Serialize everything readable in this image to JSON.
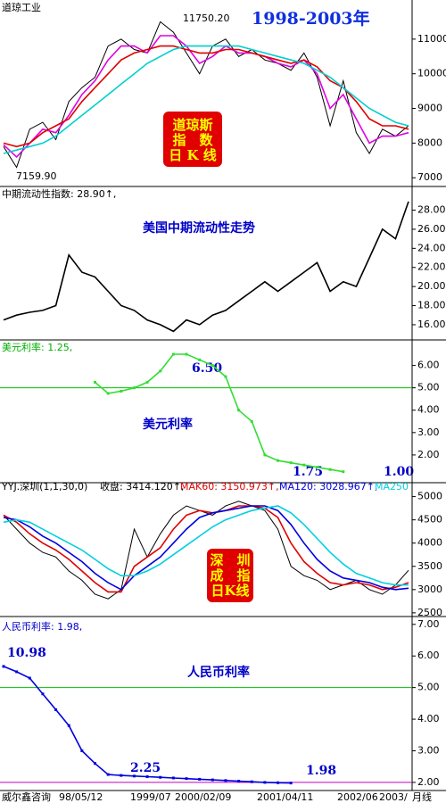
{
  "chart_data": [
    {
      "type": "line",
      "title": "道琼工业",
      "subtitle": "1998-2003年",
      "annotations": [
        "11750.20",
        "7159.90"
      ],
      "box_text": [
        "道琼斯",
        "指　数",
        "日 K 线"
      ],
      "ylim": [
        6800,
        12000
      ],
      "yticks": [
        7000,
        8000,
        9000,
        10000,
        11000
      ],
      "series": [
        {
          "color": "#000000",
          "values": [
            7900,
            7300,
            8400,
            8600,
            8100,
            9200,
            9600,
            9900,
            10800,
            11000,
            10700,
            10600,
            11500,
            11200,
            10600,
            10000,
            10800,
            11000,
            10500,
            10700,
            10400,
            10300,
            10100,
            10600,
            9900,
            8500,
            9800,
            8300,
            7700,
            8400,
            8200,
            8500
          ]
        },
        {
          "color": "#e000e0",
          "values": [
            7950,
            7600,
            8000,
            8400,
            8300,
            8800,
            9400,
            9800,
            10400,
            10800,
            10800,
            10600,
            11100,
            11100,
            10800,
            10300,
            10500,
            10800,
            10600,
            10600,
            10500,
            10300,
            10200,
            10400,
            10000,
            9000,
            9400,
            8700,
            8000,
            8200,
            8200,
            8300
          ]
        },
        {
          "color": "#e00000",
          "values": [
            8000,
            7900,
            8000,
            8300,
            8500,
            8700,
            9200,
            9600,
            10000,
            10400,
            10600,
            10700,
            10800,
            10800,
            10700,
            10600,
            10600,
            10700,
            10700,
            10600,
            10500,
            10400,
            10300,
            10400,
            10200,
            9800,
            9600,
            9200,
            8700,
            8500,
            8500,
            8400
          ]
        },
        {
          "color": "#00d0d0",
          "values": [
            7700,
            7800,
            7900,
            8000,
            8200,
            8500,
            8800,
            9100,
            9400,
            9700,
            10000,
            10300,
            10500,
            10700,
            10800,
            10800,
            10800,
            10800,
            10800,
            10700,
            10600,
            10500,
            10400,
            10300,
            10100,
            9900,
            9600,
            9300,
            9000,
            8800,
            8600,
            8500
          ]
        }
      ]
    },
    {
      "type": "line",
      "title": "中期流动性指数: 28.90↑,",
      "subtitle": "美国中期流动性走势",
      "ylim": [
        14.5,
        30.2
      ],
      "yticks": [
        {
          "value": 16,
          "label": "16.00"
        },
        {
          "value": 18,
          "label": "18.00"
        },
        {
          "value": 20,
          "label": "20.00"
        },
        {
          "value": 22,
          "label": "22.00"
        },
        {
          "value": 24,
          "label": "24.00"
        },
        {
          "value": 26,
          "label": "26.00"
        },
        {
          "value": 28,
          "label": "28.00"
        }
      ],
      "series": [
        {
          "color": "#000000",
          "values": [
            16.5,
            17.0,
            17.3,
            17.5,
            18.0,
            23.3,
            21.5,
            21.0,
            19.5,
            18.0,
            17.5,
            16.5,
            16.0,
            15.3,
            16.5,
            16.0,
            17.0,
            17.5,
            18.5,
            19.5,
            20.5,
            19.5,
            20.5,
            21.5,
            22.5,
            19.5,
            20.5,
            20.0,
            23.0,
            26.0,
            25.0,
            28.9
          ]
        }
      ]
    },
    {
      "type": "line",
      "title": "美元利率: 1.25,",
      "subtitle": "美元利率",
      "annotations": [
        "6.50",
        "1.75",
        "1.00"
      ],
      "ylim": [
        0.8,
        7.1
      ],
      "yticks": [
        {
          "value": 2,
          "label": "2.00"
        },
        {
          "value": 3,
          "label": "3.00"
        },
        {
          "value": 4,
          "label": "4.00"
        },
        {
          "value": 5,
          "label": "5.00"
        },
        {
          "value": 6,
          "label": "6.00"
        }
      ],
      "hlines": [
        {
          "value": 5,
          "color": "#00c000"
        }
      ],
      "series": [
        {
          "color": "#33dd33",
          "values": [
            null,
            null,
            null,
            null,
            null,
            null,
            null,
            5.25,
            4.75,
            4.85,
            5.0,
            5.25,
            5.75,
            6.5,
            6.5,
            6.25,
            6.0,
            5.5,
            4.0,
            3.5,
            2.0,
            1.75,
            1.65,
            1.55,
            1.45,
            1.35,
            1.25,
            null,
            null,
            null,
            null,
            null
          ]
        }
      ]
    },
    {
      "type": "line",
      "title": "YYJ.深圳(1,1,30,0)",
      "box_text": [
        "深　圳",
        "成　指",
        "日K线"
      ],
      "ylim": [
        2440,
        5280
      ],
      "yticks": [
        2500,
        3000,
        3500,
        4000,
        4500,
        5000
      ],
      "series": [
        {
          "name": "收盘: 3414.120↑,",
          "color": "#000000",
          "values": [
            4600,
            4300,
            4000,
            3800,
            3700,
            3400,
            3200,
            2900,
            2800,
            3000,
            4300,
            3700,
            4200,
            4600,
            4800,
            4700,
            4600,
            4800,
            4900,
            4800,
            4700,
            4300,
            3500,
            3300,
            3200,
            3000,
            3100,
            3200,
            3000,
            2900,
            3100,
            3414
          ]
        },
        {
          "name": "MAK60: 3150.973↑,",
          "color": "#e00000",
          "values": [
            4600,
            4450,
            4200,
            4000,
            3850,
            3650,
            3400,
            3150,
            2950,
            2950,
            3500,
            3700,
            3900,
            4300,
            4600,
            4700,
            4650,
            4700,
            4800,
            4800,
            4750,
            4550,
            4000,
            3600,
            3350,
            3150,
            3100,
            3150,
            3100,
            3000,
            3050,
            3150
          ]
        },
        {
          "name": "MA120: 3028.967↑,",
          "color": "#0000e0",
          "values": [
            4550,
            4500,
            4350,
            4150,
            4000,
            3800,
            3600,
            3350,
            3150,
            3000,
            3300,
            3500,
            3700,
            4000,
            4300,
            4550,
            4650,
            4700,
            4750,
            4800,
            4800,
            4700,
            4400,
            4000,
            3650,
            3400,
            3250,
            3200,
            3150,
            3050,
            3000,
            3030
          ]
        },
        {
          "name": "MA250",
          "color": "#00d0e0",
          "values": [
            4450,
            4500,
            4450,
            4300,
            4150,
            4000,
            3850,
            3650,
            3450,
            3300,
            3300,
            3400,
            3550,
            3750,
            3950,
            4150,
            4350,
            4500,
            4600,
            4700,
            4750,
            4800,
            4650,
            4400,
            4100,
            3800,
            3550,
            3350,
            3250,
            3150,
            3100,
            3100
          ]
        }
      ]
    },
    {
      "type": "line",
      "title": "人民币利率: 1.98,",
      "subtitle": "人民币利率",
      "annotations": [
        "10.98",
        "2.25",
        "1.98"
      ],
      "ylim": [
        1.8,
        7.22
      ],
      "yticks": [
        {
          "value": 2,
          "label": "2.00"
        },
        {
          "value": 3,
          "label": "3.00"
        },
        {
          "value": 4,
          "label": "4.00"
        },
        {
          "value": 5,
          "label": "5.00"
        },
        {
          "value": 6,
          "label": "6.00"
        },
        {
          "value": 7,
          "label": "7.00"
        }
      ],
      "hlines": [
        {
          "value": 5,
          "color": "#00c000"
        },
        {
          "value": 2,
          "color": "#c000c0"
        }
      ],
      "series": [
        {
          "color": "#0000e0",
          "values": [
            5.67,
            5.5,
            5.3,
            4.8,
            4.3,
            3.8,
            3.0,
            2.6,
            2.25,
            2.22,
            2.2,
            2.18,
            2.16,
            2.14,
            2.12,
            2.1,
            2.08,
            2.06,
            2.04,
            2.02,
            2.0,
            1.99,
            1.98,
            null,
            null,
            null,
            null,
            null,
            null,
            null,
            null,
            null
          ]
        }
      ]
    }
  ],
  "footer": {
    "source": "威尔鑫咨询",
    "dates": [
      "98/05/12",
      "1999/07",
      "2000/02/09",
      "2001/04/11",
      "2002/06",
      "2003/",
      "月线"
    ]
  }
}
